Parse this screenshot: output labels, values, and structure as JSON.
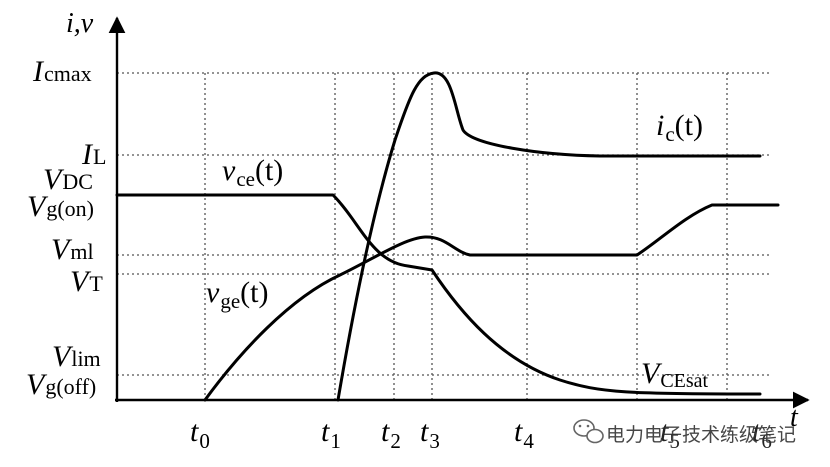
{
  "axes": {
    "y_label": "i,v",
    "x_label": "t"
  },
  "y_levels": [
    {
      "key": "icmax",
      "main": "I",
      "sub": "cmax"
    },
    {
      "key": "il",
      "main": "I",
      "sub": "L"
    },
    {
      "key": "vdc",
      "main": "V",
      "sub": "DC"
    },
    {
      "key": "vgon",
      "main": "V",
      "sub": "g(on)"
    },
    {
      "key": "vml",
      "main": "V",
      "sub": "ml"
    },
    {
      "key": "vt",
      "main": "V",
      "sub": "T"
    },
    {
      "key": "vlim",
      "main": "V",
      "sub": "lim"
    },
    {
      "key": "vgoff",
      "main": "V",
      "sub": "g(off)"
    }
  ],
  "time_marks": [
    {
      "key": "t0",
      "main": "t",
      "sub": "0"
    },
    {
      "key": "t1",
      "main": "t",
      "sub": "1"
    },
    {
      "key": "t2",
      "main": "t",
      "sub": "2"
    },
    {
      "key": "t3",
      "main": "t",
      "sub": "3"
    },
    {
      "key": "t4",
      "main": "t",
      "sub": "4"
    },
    {
      "key": "t5",
      "main": "t",
      "sub": "5"
    },
    {
      "key": "t6",
      "main": "t",
      "sub": "6"
    }
  ],
  "curves": {
    "ic": {
      "main": "i",
      "sub": "c",
      "arg": "(t)"
    },
    "vce": {
      "main": "v",
      "sub": "ce",
      "arg": "(t)"
    },
    "vge": {
      "main": "v",
      "sub": "ge",
      "arg": "(t)"
    },
    "vcesat": {
      "main": "V",
      "sub": "CEsat"
    }
  },
  "watermark": {
    "text": "电力电子技术练级笔记",
    "icon": "wechat-icon"
  }
}
